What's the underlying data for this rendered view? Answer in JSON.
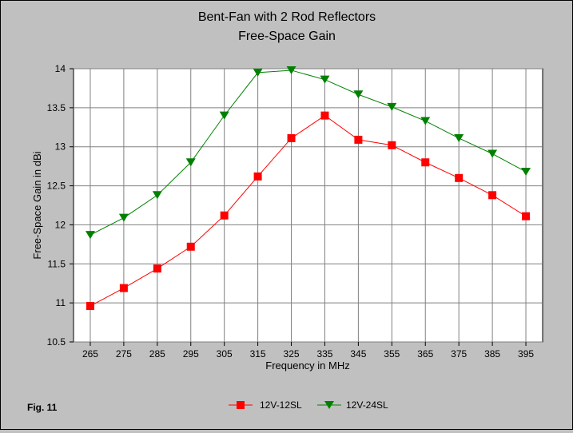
{
  "figure_label": "Fig. 11",
  "chart_data": {
    "type": "line",
    "title": "Bent-Fan with 2 Rod Reflectors",
    "subtitle": "Free-Space Gain",
    "xlabel": "Frequency in MHz",
    "ylabel": "Free-Space Gain in dBi",
    "x": [
      265,
      275,
      285,
      295,
      305,
      315,
      325,
      335,
      345,
      355,
      365,
      375,
      385,
      395
    ],
    "xlim": [
      260,
      400
    ],
    "ylim": [
      10.5,
      14
    ],
    "yticks": [
      10.5,
      11,
      11.5,
      12,
      12.5,
      13,
      13.5,
      14
    ],
    "ytick_labels": [
      "10.5",
      "11",
      "11.5",
      "12",
      "12.5",
      "13",
      "13.5",
      "14"
    ],
    "grid": true,
    "legend_position": "bottom",
    "series": [
      {
        "name": "12V-12SL",
        "color": "#ff0000",
        "marker": "square",
        "values": [
          10.96,
          11.19,
          11.44,
          11.72,
          12.12,
          12.62,
          13.11,
          13.4,
          13.09,
          13.02,
          12.8,
          12.6,
          12.38,
          12.11
        ]
      },
      {
        "name": "12V-24SL",
        "color": "#008000",
        "marker": "triangle-down",
        "values": [
          11.87,
          12.09,
          12.38,
          12.8,
          13.4,
          13.95,
          13.98,
          13.86,
          13.67,
          13.51,
          13.33,
          13.11,
          12.91,
          12.68
        ]
      }
    ]
  }
}
